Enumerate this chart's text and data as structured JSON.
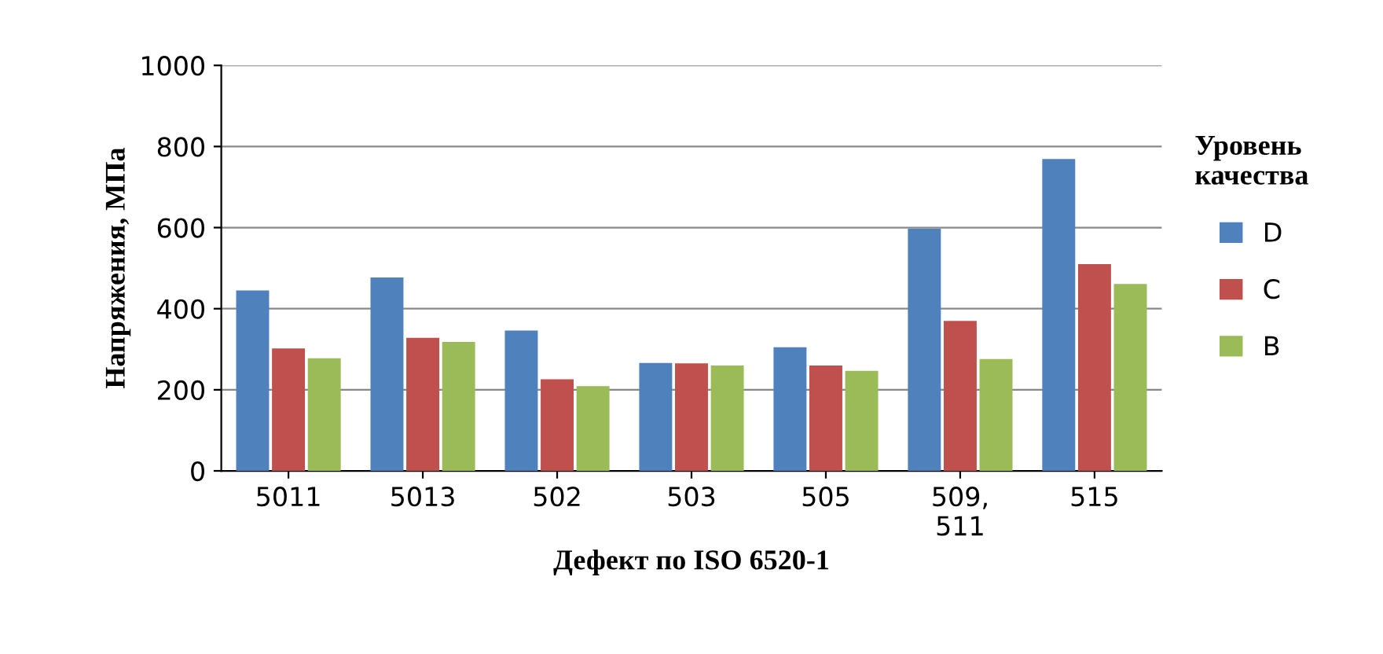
{
  "chart_data": {
    "type": "bar",
    "xlabel": "Дефект по ISO 6520-1",
    "ylabel": "Напряжения, МПа",
    "legend_title": "Уровень\nкачества",
    "categories": [
      "5011",
      "5013",
      "502",
      "503",
      "505",
      "509,\n511",
      "515"
    ],
    "series": [
      {
        "name": "D",
        "color": "#4f81bd",
        "values": [
          445,
          477,
          346,
          266,
          305,
          597,
          769
        ]
      },
      {
        "name": "C",
        "color": "#c0504d",
        "values": [
          302,
          328,
          226,
          265,
          260,
          370,
          510
        ]
      },
      {
        "name": "B",
        "color": "#9bbb59",
        "values": [
          278,
          318,
          209,
          260,
          247,
          276,
          461
        ]
      }
    ],
    "ylim": [
      0,
      1000
    ],
    "yticks": [
      0,
      200,
      400,
      600,
      800,
      1000
    ],
    "grid": "y",
    "legend": "right"
  }
}
